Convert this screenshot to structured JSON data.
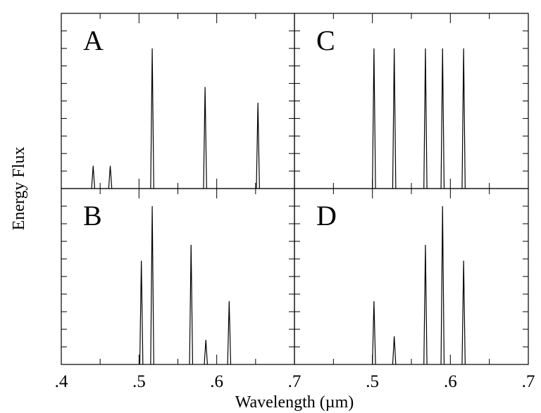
{
  "chart_data": {
    "type": "line",
    "title": "",
    "xlabel": "Wavelength (µm)",
    "ylabel": "Energy Flux",
    "x_ticks": [
      ".4",
      ".5",
      ".6",
      ".7"
    ],
    "xlim": [
      0.4,
      0.7
    ],
    "ylim": [
      0,
      1
    ],
    "grid": false,
    "panels": [
      {
        "label": "A",
        "lines": [
          {
            "x": 0.441,
            "y": 0.13
          },
          {
            "x": 0.463,
            "y": 0.13
          },
          {
            "x": 0.517,
            "y": 0.8
          },
          {
            "x": 0.585,
            "y": 0.58
          },
          {
            "x": 0.653,
            "y": 0.49
          }
        ]
      },
      {
        "label": "C",
        "lines": [
          {
            "x": 0.502,
            "y": 0.8
          },
          {
            "x": 0.528,
            "y": 0.8
          },
          {
            "x": 0.568,
            "y": 0.8
          },
          {
            "x": 0.59,
            "y": 0.8
          },
          {
            "x": 0.617,
            "y": 0.8
          }
        ]
      },
      {
        "label": "B",
        "lines": [
          {
            "x": 0.503,
            "y": 0.59
          },
          {
            "x": 0.517,
            "y": 0.9
          },
          {
            "x": 0.567,
            "y": 0.68
          },
          {
            "x": 0.586,
            "y": 0.14
          },
          {
            "x": 0.616,
            "y": 0.36
          }
        ]
      },
      {
        "label": "D",
        "lines": [
          {
            "x": 0.502,
            "y": 0.36
          },
          {
            "x": 0.528,
            "y": 0.16
          },
          {
            "x": 0.568,
            "y": 0.68
          },
          {
            "x": 0.59,
            "y": 0.9
          },
          {
            "x": 0.617,
            "y": 0.59
          }
        ]
      }
    ]
  }
}
